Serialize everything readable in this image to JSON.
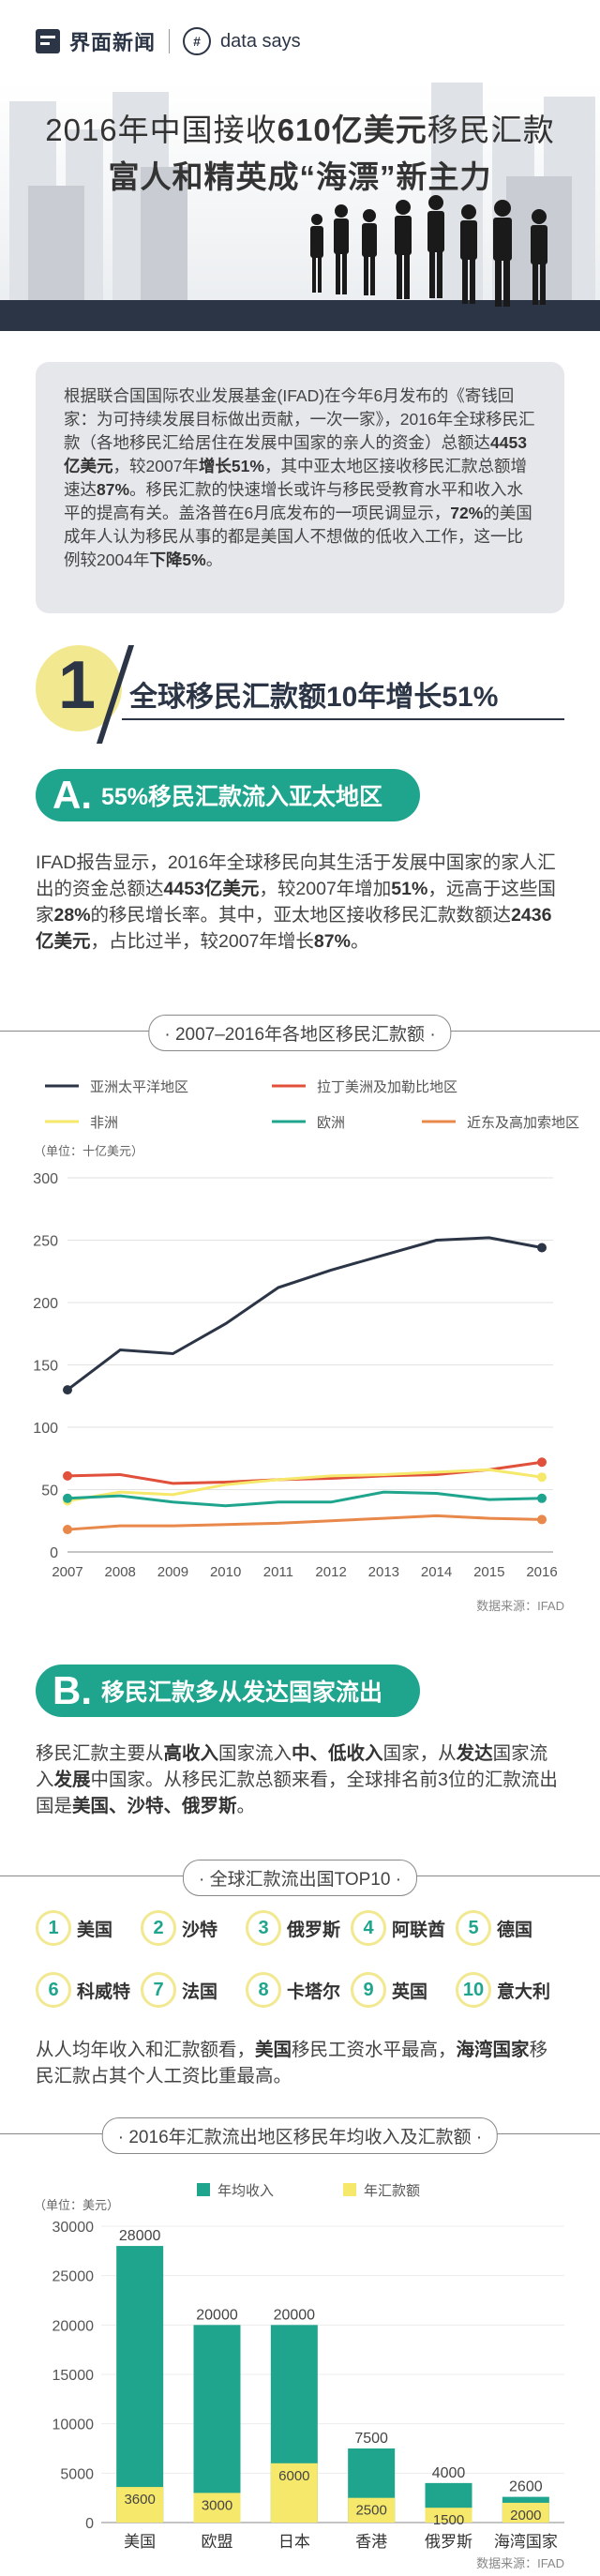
{
  "header": {
    "brand_name": "界面新闻",
    "section_name": "data says"
  },
  "hero": {
    "title_part1": "2016年中国接收",
    "title_bold": "610亿美元",
    "title_part2": "移民汇款",
    "subtitle": "富人和精英成“海漂”新主力"
  },
  "intro": {
    "segments": [
      {
        "t": "根据联合国国际农业发展基金(IFAD)在今年6月发布的《寄钱回家：为可持续发展目标做出贡献，一次一家》，2016年全球移民汇款（各地移民汇给居住在发展中国家的亲人的资金）总额达",
        "b": false
      },
      {
        "t": "4453亿美元",
        "b": true
      },
      {
        "t": "，较2007年",
        "b": false
      },
      {
        "t": "增长51%",
        "b": true
      },
      {
        "t": "，其中亚太地区接收移民汇款总额增速达",
        "b": false
      },
      {
        "t": "87%",
        "b": true
      },
      {
        "t": "。移民汇款的快速增长或许与移民受教育水平和收入水平的提高有关。盖洛普在6月底发布的一项民调显示，",
        "b": false
      },
      {
        "t": "72%",
        "b": true
      },
      {
        "t": "的美国成年人认为移民从事的都是美国人不想做的低收入工作，这一比例较2004年",
        "b": false
      },
      {
        "t": "下降5%",
        "b": true
      },
      {
        "t": "。",
        "b": false
      }
    ]
  },
  "section1": {
    "number": "1",
    "title": "全球移民汇款额10年增长51%"
  },
  "sectionA": {
    "letter": "A.",
    "title": "55%移民汇款流入亚太地区"
  },
  "paraA": {
    "segments": [
      {
        "t": "IFAD报告显示，2016年全球移民向其生活于发展中国家的家人汇出的资金总额达",
        "b": false
      },
      {
        "t": "4453亿美元",
        "b": true
      },
      {
        "t": "，较2007年增加",
        "b": false
      },
      {
        "t": "51%",
        "b": true
      },
      {
        "t": "，远高于这些国家",
        "b": false
      },
      {
        "t": "28%",
        "b": true
      },
      {
        "t": "的移民增长率。其中，亚太地区接收移民汇款数额达",
        "b": false
      },
      {
        "t": "2436亿美元",
        "b": true
      },
      {
        "t": "，占比过半，较2007年增长",
        "b": false
      },
      {
        "t": "87%",
        "b": true
      },
      {
        "t": "。",
        "b": false
      }
    ]
  },
  "sectionB": {
    "letter": "B.",
    "title": "移民汇款多从发达国家流出"
  },
  "paraB": {
    "segments": [
      {
        "t": "移民汇款主要从",
        "b": false
      },
      {
        "t": "高收入",
        "b": true
      },
      {
        "t": "国家流入",
        "b": false
      },
      {
        "t": "中、低收入",
        "b": true
      },
      {
        "t": "国家，从",
        "b": false
      },
      {
        "t": "发达",
        "b": true
      },
      {
        "t": "国家流入",
        "b": false
      },
      {
        "t": "发展",
        "b": true
      },
      {
        "t": "中国家。从移民汇款总额来看，全球排名前3位的汇款流出国是",
        "b": false
      },
      {
        "t": "美国、沙特、俄罗斯",
        "b": true
      },
      {
        "t": "。",
        "b": false
      }
    ]
  },
  "top10": {
    "title": "· 全球汇款流出国TOP10 ·",
    "items": [
      {
        "num": "1",
        "name": "美国"
      },
      {
        "num": "2",
        "name": "沙特"
      },
      {
        "num": "3",
        "name": "俄罗斯"
      },
      {
        "num": "4",
        "name": "阿联酋"
      },
      {
        "num": "5",
        "name": "德国"
      },
      {
        "num": "6",
        "name": "科威特"
      },
      {
        "num": "7",
        "name": "法国"
      },
      {
        "num": "8",
        "name": "卡塔尔"
      },
      {
        "num": "9",
        "name": "英国"
      },
      {
        "num": "10",
        "name": "意大利"
      }
    ]
  },
  "paraC": {
    "segments": [
      {
        "t": "从人均年收入和汇款额看，",
        "b": false
      },
      {
        "t": "美国",
        "b": true
      },
      {
        "t": "移民工资水平最高，",
        "b": false
      },
      {
        "t": "海湾国家",
        "b": true
      },
      {
        "t": "移民汇款占其个人工资比重最高。",
        "b": false
      }
    ]
  },
  "colors": {
    "navy": "#2b3546",
    "teal": "#1fa58e",
    "yellow": "#f2e88f",
    "red": "#e0503a",
    "lightyellow": "#f5e86a",
    "orange": "#e8884a"
  },
  "chart_data": [
    {
      "type": "line",
      "title": "· 2007–2016年各地区移民汇款额 ·",
      "ylabel": "（单位：十亿美元）",
      "source": "数据来源：IFAD",
      "x": [
        2007,
        2008,
        2009,
        2010,
        2011,
        2012,
        2013,
        2014,
        2015,
        2016
      ],
      "yticks": [
        0,
        50,
        100,
        150,
        200,
        250,
        300
      ],
      "ylim": [
        0,
        300
      ],
      "legend_position": "top",
      "series": [
        {
          "name": "亚洲太平洋地区",
          "color": "#2b3546",
          "values": [
            130,
            162,
            159,
            183,
            212,
            226,
            238,
            250,
            252,
            244
          ],
          "markers": true
        },
        {
          "name": "拉丁美洲及加勒比地区",
          "color": "#e0503a",
          "values": [
            61,
            62,
            55,
            56,
            58,
            59,
            61,
            62,
            66,
            72
          ],
          "markers": true
        },
        {
          "name": "非洲",
          "color": "#f5e86a",
          "values": [
            41,
            48,
            46,
            54,
            58,
            61,
            62,
            64,
            66,
            60
          ],
          "markers": true
        },
        {
          "name": "欧洲",
          "color": "#1fa58e",
          "values": [
            43,
            45,
            40,
            37,
            40,
            40,
            48,
            47,
            42,
            43
          ],
          "markers": true
        },
        {
          "name": "近东及高加索地区",
          "color": "#e8884a",
          "values": [
            18,
            21,
            21,
            22,
            23,
            25,
            27,
            29,
            27,
            26
          ],
          "markers": true
        }
      ]
    },
    {
      "type": "bar",
      "title": "· 2016年汇款流出地区移民年均收入及汇款额 ·",
      "ylabel": "（单位：美元）",
      "source": "数据来源：IFAD",
      "categories": [
        "美国",
        "欧盟",
        "日本",
        "香港",
        "俄罗斯",
        "海湾国家"
      ],
      "yticks": [
        0,
        5000,
        10000,
        15000,
        20000,
        25000,
        30000
      ],
      "ylim": [
        0,
        30000
      ],
      "legend_position": "top",
      "series": [
        {
          "name": "年均收入",
          "color": "#1fa58e",
          "values": [
            28000,
            20000,
            20000,
            7500,
            4000,
            2600
          ]
        },
        {
          "name": "年汇款额",
          "color": "#f5e86a",
          "values": [
            3600,
            3000,
            6000,
            2500,
            1500,
            2000
          ]
        }
      ]
    }
  ]
}
